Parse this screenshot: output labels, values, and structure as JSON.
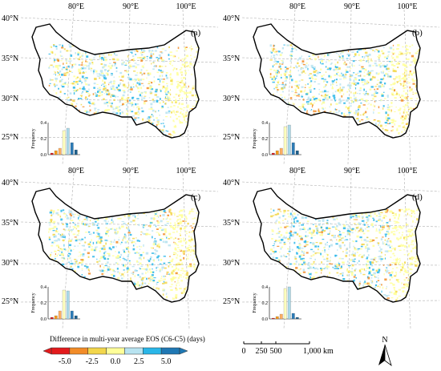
{
  "panels": [
    {
      "label": "(a)",
      "lon_labels": [
        "80°E",
        "90°E",
        "100°E"
      ],
      "lat_labels": [
        "40°N",
        "35°N",
        "30°N",
        "25°N"
      ],
      "histogram_y_label": "Frequency",
      "histogram_y_ticks": [
        "0.4",
        "0.2",
        "0.0"
      ],
      "histogram": [
        0.02,
        0.05,
        0.08,
        0.3,
        0.33,
        0.15,
        0.06
      ]
    },
    {
      "label": "(b)",
      "lon_labels": [
        "80°E",
        "90°E",
        "100°E"
      ],
      "lat_labels": [
        "40°N",
        "35°N",
        "30°N",
        "25°N"
      ],
      "histogram_y_label": "Frequency",
      "histogram_y_ticks": [
        "0.4",
        "0.2",
        "0.0"
      ],
      "histogram": [
        0.02,
        0.05,
        0.08,
        0.35,
        0.37,
        0.15,
        0.05
      ]
    },
    {
      "label": "(c)",
      "lon_labels": [
        "80°E",
        "90°E",
        "100°E"
      ],
      "lat_labels": [
        "40°N",
        "35°N",
        "30°N",
        "25°N"
      ],
      "histogram_y_label": "Frequency",
      "histogram_y_ticks": [
        "0.4",
        "0.2",
        "0.0"
      ],
      "histogram": [
        0.02,
        0.04,
        0.1,
        0.36,
        0.35,
        0.1,
        0.04
      ]
    },
    {
      "label": "(d)",
      "lon_labels": [
        "80°E",
        "90°E",
        "100°E"
      ],
      "lat_labels": [
        "40°N",
        "35°N",
        "30°N",
        "25°N"
      ],
      "histogram_y_label": "Frequency",
      "histogram_y_ticks": [
        "0.4",
        "0.2",
        "0.0"
      ],
      "histogram": [
        0.01,
        0.03,
        0.06,
        0.38,
        0.4,
        0.07,
        0.02
      ]
    }
  ],
  "histogram_colors": [
    "#d7191c",
    "#f59a1c",
    "#fdae61",
    "#ffffbf",
    "#abd9e9",
    "#2c7bb6",
    "#1f5f8b"
  ],
  "legend": {
    "title": "Difference in multi-year average EOS (C6-C5) (days)",
    "ticks": [
      "-5.0",
      "-2.5",
      "0.0",
      "2.5",
      "5.0"
    ],
    "colors": [
      "#e31a1c",
      "#f28c28",
      "#f2d64b",
      "#ffff99",
      "#b8e3f0",
      "#29b6e8",
      "#1f78b4"
    ]
  },
  "scale_bar": {
    "ticks": [
      "0",
      "250",
      "500",
      "1,000 km"
    ]
  },
  "north_arrow": {
    "label": "N"
  },
  "colors": {
    "outline": "#000000",
    "grid": "#b0b0b0",
    "pixels": [
      "#ffff99",
      "#b8e3f0",
      "#29b6e8",
      "#f2d64b",
      "#f28c28"
    ]
  }
}
